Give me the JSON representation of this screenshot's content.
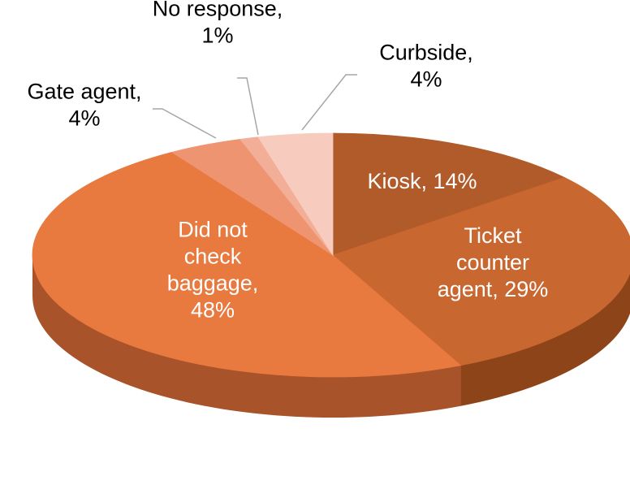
{
  "chart_data": {
    "type": "pie",
    "title": "",
    "style": "3d",
    "start_angle_deg": 90,
    "direction": "clockwise",
    "slices": [
      {
        "label_lines": [
          "Kiosk, 14%"
        ],
        "value": 14,
        "color": "#B15A2A",
        "side_color": "#7E3C18",
        "label_color": "#ffffff",
        "leader": false
      },
      {
        "label_lines": [
          "Ticket",
          "counter",
          "agent, 29%"
        ],
        "value": 29,
        "color": "#C8672F",
        "side_color": "#8E4419",
        "label_color": "#ffffff",
        "leader": false
      },
      {
        "label_lines": [
          "Did not",
          "check",
          "baggage,",
          "48%"
        ],
        "value": 48,
        "color": "#E8793F",
        "side_color": "#A8532A",
        "label_color": "#ffffff",
        "leader": false
      },
      {
        "label_lines": [
          "Gate agent,",
          "4%"
        ],
        "value": 4,
        "color": "#EE9470",
        "side_color": "#B86A4E",
        "label_color": "#000000",
        "leader": true
      },
      {
        "label_lines": [
          "No response,",
          "1%"
        ],
        "value": 1,
        "color": "#F2AE96",
        "side_color": "#C48A78",
        "label_color": "#000000",
        "leader": true
      },
      {
        "label_lines": [
          "Curbside,",
          "4%"
        ],
        "value": 4,
        "color": "#F7CCBE",
        "side_color": "#D3A99B",
        "label_color": "#000000",
        "leader": true
      }
    ]
  }
}
